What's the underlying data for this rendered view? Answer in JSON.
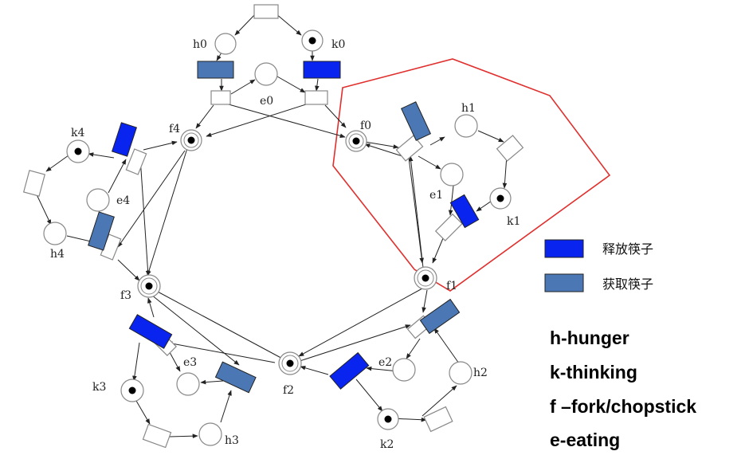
{
  "colors": {
    "release": "#0a24f0",
    "acquire": "#4b78b4",
    "highlight": "#e0302e",
    "node_stroke": "#888888",
    "token": "#000000"
  },
  "labels": {
    "h0": "h0",
    "k0": "k0",
    "e0": "e0",
    "h1": "h1",
    "k1": "k1",
    "e1": "e1",
    "h2": "h2",
    "k2": "k2",
    "e2": "e2",
    "h3": "h3",
    "k3": "k3",
    "e3": "e3",
    "h4": "h4",
    "k4": "k4",
    "e4": "e4",
    "f0": "f0",
    "f1": "f1",
    "f2": "f2",
    "f3": "f3",
    "f4": "f4"
  },
  "legend": {
    "release_label": "释放筷子",
    "acquire_label": "获取筷子"
  },
  "key": {
    "h": "h-hunger",
    "k": "k-thinking",
    "f": "f –fork/chopstick",
    "e": "e-eating"
  }
}
